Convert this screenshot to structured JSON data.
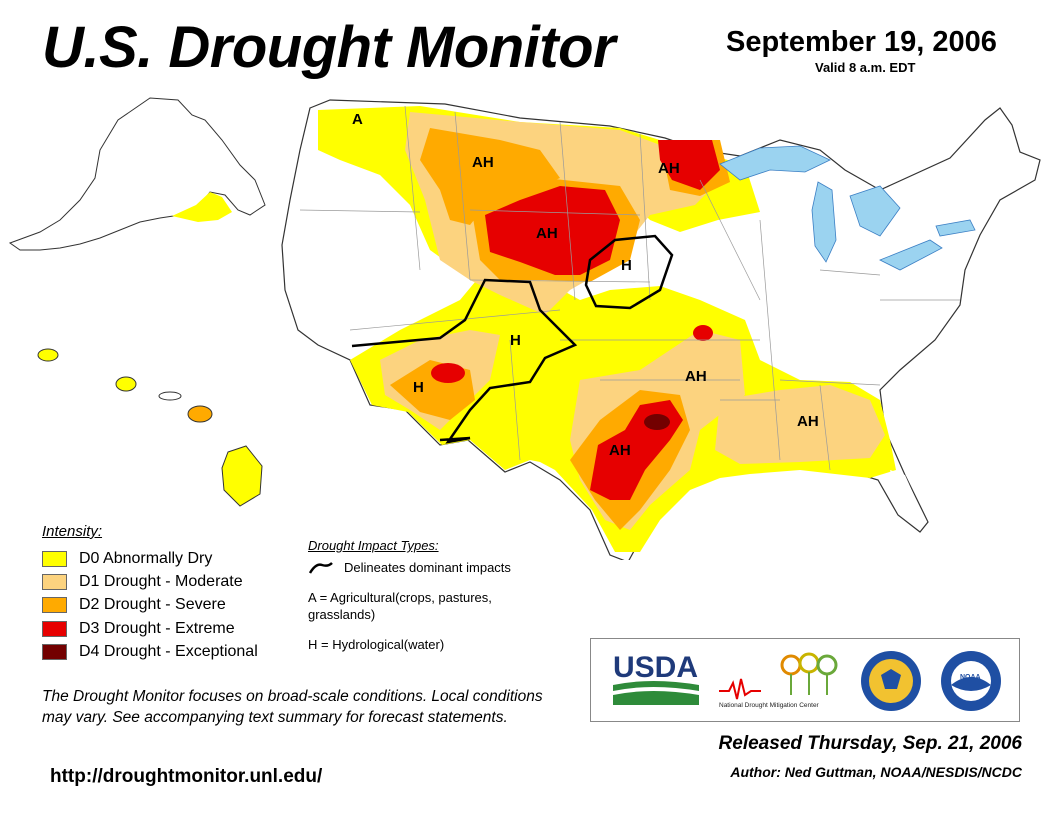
{
  "header": {
    "title": "U.S. Drought Monitor",
    "date": "September 19, 2006",
    "valid": "Valid 8 a.m. EDT"
  },
  "colors": {
    "D0": "#ffff00",
    "D1": "#fcd37f",
    "D2": "#ffaa00",
    "D3": "#e60000",
    "D4": "#730000",
    "water": "#9bd3f0",
    "border": "#9a9a9a"
  },
  "legend": {
    "title": "Intensity:",
    "items": [
      {
        "label": "D0 Abnormally Dry",
        "color": "#ffff00"
      },
      {
        "label": "D1 Drought - Moderate",
        "color": "#fcd37f"
      },
      {
        "label": "D2 Drought - Severe",
        "color": "#ffaa00"
      },
      {
        "label": "D3 Drought - Extreme",
        "color": "#e60000"
      },
      {
        "label": "D4 Drought - Exceptional",
        "color": "#730000"
      }
    ]
  },
  "impacts": {
    "title": "Drought Impact Types:",
    "line_label": "Delineates dominant impacts",
    "a_label": "A = Agricultural(crops, pastures, grasslands)",
    "h_label": "H = Hydrological(water)"
  },
  "map_labels": {
    "a_nw": "A",
    "ah_mt": "AH",
    "ah_mn": "AH",
    "ah_sd": "AH",
    "h_ne": "H",
    "h_co": "H",
    "h_az": "H",
    "ah_ar": "AH",
    "ah_tx": "AH",
    "ah_se": "AH"
  },
  "disclaimer": "The Drought Monitor focuses on broad-scale conditions. Local conditions may vary. See accompanying text summary for forecast statements.",
  "url": "http://droughtmonitor.unl.edu/",
  "logos": {
    "usda": "USDA",
    "ndmc": "National Drought Mitigation Center",
    "noaa": "NOAA"
  },
  "footer": {
    "released": "Released Thursday, Sep. 21, 2006",
    "author": "Author: Ned Guttman, NOAA/NESDIS/NCDC"
  }
}
